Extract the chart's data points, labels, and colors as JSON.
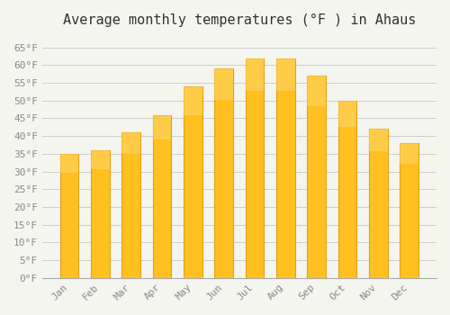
{
  "title": "Average monthly temperatures (°F ) in Ahaus",
  "months": [
    "Jan",
    "Feb",
    "Mar",
    "Apr",
    "May",
    "Jun",
    "Jul",
    "Aug",
    "Sep",
    "Oct",
    "Nov",
    "Dec"
  ],
  "values": [
    35,
    36,
    41,
    46,
    54,
    59,
    62,
    62,
    57,
    50,
    42,
    38
  ],
  "bar_color": "#FFC020",
  "bar_edge_color": "#E8A010",
  "background_color": "#F5F5F0",
  "grid_color": "#CCCCCC",
  "yticks": [
    0,
    5,
    10,
    15,
    20,
    25,
    30,
    35,
    40,
    45,
    50,
    55,
    60,
    65
  ],
  "ytick_labels": [
    "0°F",
    "5°F",
    "10°F",
    "15°F",
    "20°F",
    "25°F",
    "30°F",
    "35°F",
    "40°F",
    "45°F",
    "50°F",
    "55°F",
    "60°F",
    "65°F"
  ],
  "ylim": [
    0,
    68
  ],
  "title_fontsize": 11,
  "tick_fontsize": 8,
  "font_family": "monospace"
}
